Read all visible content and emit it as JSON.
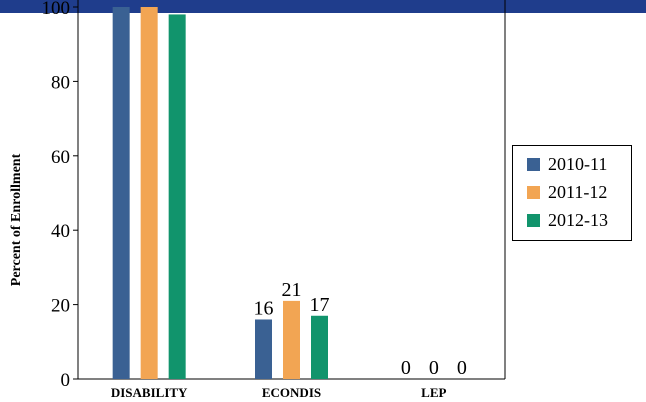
{
  "chart_data": {
    "type": "bar",
    "title": "",
    "xlabel": "",
    "ylabel": "Percent of Enrollment",
    "ylim": [
      0,
      100
    ],
    "yticks": [
      "0",
      "20",
      "40",
      "60",
      "80",
      "100"
    ],
    "categories": [
      "DISABILITY",
      "ECONDIS",
      "LEP"
    ],
    "series": [
      {
        "name": "2010-11",
        "color": "#3a6193",
        "values": [
          100,
          16,
          0
        ],
        "labels": [
          "",
          "16",
          "0"
        ]
      },
      {
        "name": "2011-12",
        "color": "#f2a553",
        "values": [
          100,
          21,
          0
        ],
        "labels": [
          "",
          "21",
          "0"
        ]
      },
      {
        "name": "2012-13",
        "color": "#11946c",
        "values": [
          98,
          17,
          0
        ],
        "labels": [
          "",
          "17",
          "0"
        ]
      }
    ],
    "legend_position": "right",
    "grid": false
  }
}
